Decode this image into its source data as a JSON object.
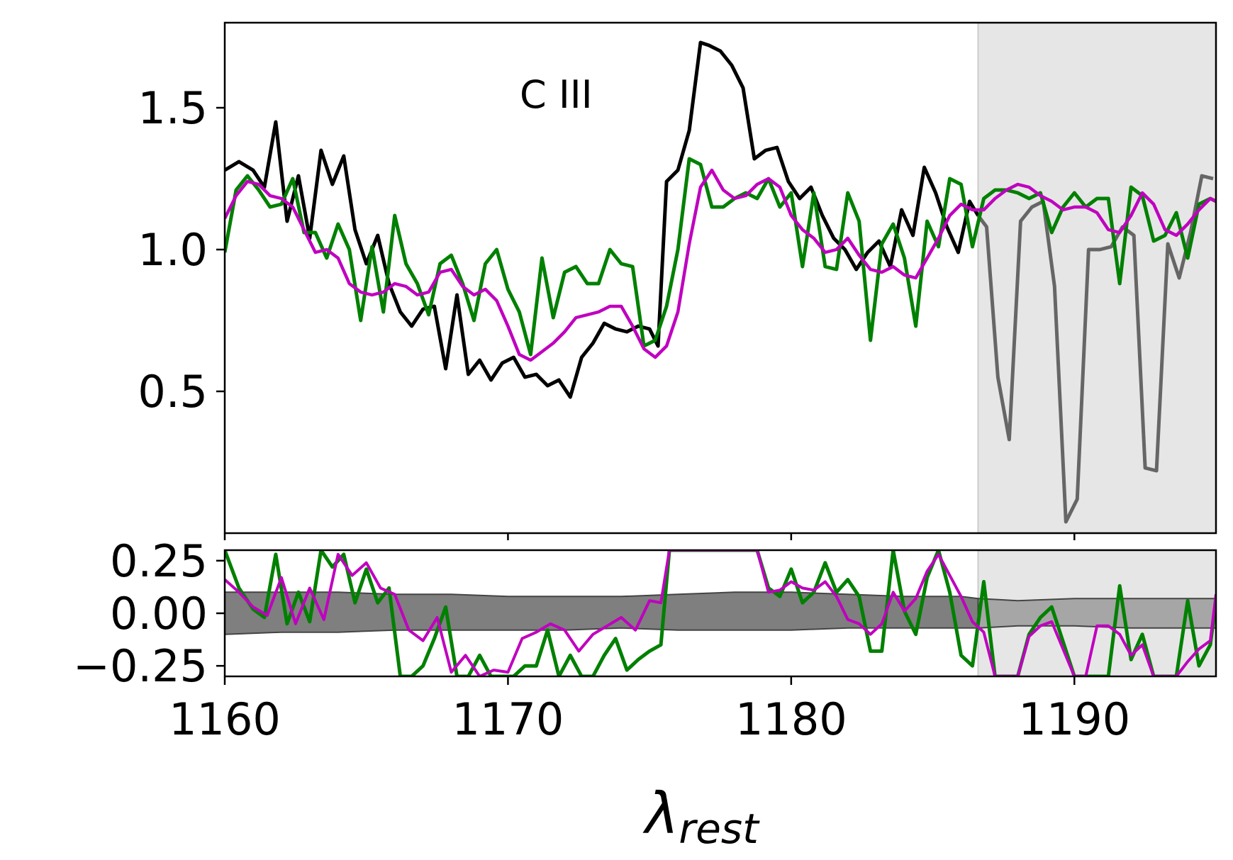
{
  "chart_data": {
    "type": "line",
    "xlabel_main": "λ",
    "xlabel_sub": "rest",
    "xlim": [
      1160,
      1195
    ],
    "x_ticks": [
      1160,
      1170,
      1180,
      1190
    ],
    "x_tick_labels": [
      "1160",
      "1170",
      "1180",
      "1190"
    ],
    "masked_region": [
      1186.6,
      1195
    ],
    "colors": {
      "black": "#000000",
      "green": "#008000",
      "magenta": "#bf00bf",
      "gray_line": "#666666",
      "mask_fill": "#e6e6e6",
      "band_dark": "#7f7f7f",
      "band_light": "#a6a6a6"
    },
    "top_panel": {
      "ylim": [
        0,
        1.8
      ],
      "y_ticks": [
        0.5,
        1.0,
        1.5
      ],
      "y_tick_labels": [
        "0.5",
        "1.0",
        "1.5"
      ],
      "annotation": {
        "text": "C III",
        "x": 1171.7,
        "y": 1.55
      },
      "black": {
        "x": [
          1160.0,
          1160.5,
          1161.0,
          1161.4,
          1161.8,
          1162.2,
          1162.6,
          1163.0,
          1163.4,
          1163.8,
          1164.2,
          1164.6,
          1165.0,
          1165.4,
          1165.8,
          1166.2,
          1166.6,
          1167.0,
          1167.4,
          1167.8,
          1168.2,
          1168.6,
          1169.0,
          1169.4,
          1169.8,
          1170.2,
          1170.6,
          1171.0,
          1171.4,
          1171.8,
          1172.2,
          1172.6,
          1173.0,
          1173.4,
          1173.8,
          1174.2,
          1174.6,
          1175.0,
          1175.3,
          1175.6,
          1176.0,
          1176.4,
          1176.8,
          1177.1,
          1177.5,
          1177.9,
          1178.3,
          1178.7,
          1179.1,
          1179.5,
          1179.9,
          1180.3,
          1180.7,
          1181.1,
          1181.5,
          1181.9,
          1182.3,
          1182.7,
          1183.1,
          1183.5,
          1183.9,
          1184.3,
          1184.7,
          1185.1,
          1185.5,
          1185.9,
          1186.3,
          1186.6
        ],
        "y": [
          1.28,
          1.31,
          1.28,
          1.22,
          1.45,
          1.1,
          1.26,
          1.04,
          1.35,
          1.23,
          1.33,
          1.07,
          0.95,
          1.05,
          0.88,
          0.78,
          0.73,
          0.79,
          0.8,
          0.58,
          0.84,
          0.56,
          0.61,
          0.54,
          0.6,
          0.62,
          0.55,
          0.56,
          0.52,
          0.54,
          0.48,
          0.62,
          0.67,
          0.74,
          0.72,
          0.71,
          0.73,
          0.72,
          0.66,
          1.24,
          1.28,
          1.42,
          1.73,
          1.72,
          1.7,
          1.65,
          1.57,
          1.32,
          1.35,
          1.36,
          1.24,
          1.18,
          1.22,
          1.12,
          1.04,
          1.0,
          0.93,
          0.99,
          1.03,
          0.94,
          1.14,
          1.05,
          1.29,
          1.2,
          1.08,
          0.99,
          1.17,
          1.12
        ]
      },
      "gray": {
        "x": [
          1186.6,
          1186.9,
          1187.3,
          1187.7,
          1188.1,
          1188.5,
          1188.9,
          1189.3,
          1189.7,
          1190.1,
          1190.5,
          1190.9,
          1191.3,
          1191.7,
          1192.1,
          1192.5,
          1192.9,
          1193.3,
          1193.7,
          1194.1,
          1194.5,
          1194.9
        ],
        "y": [
          1.12,
          1.08,
          0.55,
          0.33,
          1.1,
          1.15,
          1.17,
          0.87,
          0.04,
          0.12,
          1.0,
          1.0,
          1.01,
          1.08,
          1.05,
          0.23,
          0.22,
          1.02,
          0.9,
          1.06,
          1.26,
          1.25
        ]
      },
      "green": {
        "x": [
          1160.0,
          1160.4,
          1160.8,
          1161.2,
          1161.6,
          1162.0,
          1162.4,
          1162.8,
          1163.2,
          1163.6,
          1164.0,
          1164.4,
          1164.8,
          1165.2,
          1165.6,
          1166.0,
          1166.4,
          1166.8,
          1167.2,
          1167.6,
          1168.0,
          1168.4,
          1168.8,
          1169.2,
          1169.6,
          1170.0,
          1170.4,
          1170.8,
          1171.2,
          1171.6,
          1172.0,
          1172.4,
          1172.8,
          1173.2,
          1173.6,
          1174.0,
          1174.4,
          1174.8,
          1175.2,
          1175.6,
          1176.0,
          1176.4,
          1176.8,
          1177.2,
          1177.6,
          1178.0,
          1178.4,
          1178.8,
          1179.2,
          1179.6,
          1180.0,
          1180.4,
          1180.8,
          1181.2,
          1181.6,
          1182.0,
          1182.4,
          1182.8,
          1183.2,
          1183.6,
          1184.0,
          1184.4,
          1184.8,
          1185.2,
          1185.6,
          1186.0,
          1186.4,
          1186.8,
          1187.2,
          1187.6,
          1188.0,
          1188.4,
          1188.8,
          1189.2,
          1189.6,
          1190.0,
          1190.4,
          1190.8,
          1191.2,
          1191.6,
          1192.0,
          1192.4,
          1192.8,
          1193.2,
          1193.6,
          1194.0,
          1194.4,
          1194.8,
          1195.0
        ],
        "y": [
          0.99,
          1.21,
          1.26,
          1.21,
          1.15,
          1.16,
          1.25,
          1.06,
          1.06,
          0.97,
          1.09,
          1.0,
          0.75,
          1.01,
          0.78,
          1.12,
          0.95,
          0.88,
          0.77,
          0.95,
          0.98,
          0.88,
          0.75,
          0.95,
          1.0,
          0.86,
          0.78,
          0.63,
          0.97,
          0.76,
          0.92,
          0.94,
          0.88,
          0.88,
          1.0,
          0.95,
          0.94,
          0.66,
          0.68,
          0.8,
          1.0,
          1.32,
          1.3,
          1.15,
          1.15,
          1.18,
          1.2,
          1.18,
          1.25,
          1.15,
          1.2,
          0.94,
          1.2,
          0.94,
          0.93,
          1.2,
          1.1,
          0.68,
          1.02,
          1.09,
          0.97,
          0.73,
          1.1,
          1.01,
          1.25,
          1.23,
          1.01,
          1.18,
          1.21,
          1.21,
          1.2,
          1.18,
          1.2,
          1.06,
          1.15,
          1.2,
          1.15,
          1.18,
          1.18,
          0.88,
          1.22,
          1.19,
          1.03,
          1.05,
          1.13,
          0.97,
          1.16,
          1.18,
          1.17
        ]
      },
      "magenta": {
        "x": [
          1160.0,
          1160.4,
          1160.8,
          1161.2,
          1161.6,
          1162.0,
          1162.4,
          1162.8,
          1163.2,
          1163.6,
          1164.0,
          1164.4,
          1164.8,
          1165.2,
          1165.6,
          1166.0,
          1166.4,
          1166.8,
          1167.2,
          1167.6,
          1168.0,
          1168.4,
          1168.8,
          1169.2,
          1169.6,
          1170.0,
          1170.4,
          1170.8,
          1171.2,
          1171.6,
          1172.0,
          1172.4,
          1172.8,
          1173.2,
          1173.6,
          1174.0,
          1174.4,
          1174.8,
          1175.2,
          1175.6,
          1176.0,
          1176.4,
          1176.8,
          1177.2,
          1177.6,
          1178.0,
          1178.4,
          1178.8,
          1179.2,
          1179.6,
          1180.0,
          1180.4,
          1180.8,
          1181.2,
          1181.6,
          1182.0,
          1182.4,
          1182.8,
          1183.2,
          1183.6,
          1184.0,
          1184.4,
          1184.8,
          1185.2,
          1185.6,
          1186.0,
          1186.4,
          1186.8,
          1187.2,
          1187.6,
          1188.0,
          1188.4,
          1188.8,
          1189.2,
          1189.6,
          1190.0,
          1190.4,
          1190.8,
          1191.2,
          1191.6,
          1192.0,
          1192.4,
          1192.8,
          1193.2,
          1193.6,
          1194.0,
          1194.4,
          1194.8,
          1195.0
        ],
        "y": [
          1.11,
          1.19,
          1.24,
          1.23,
          1.19,
          1.18,
          1.15,
          1.07,
          0.99,
          1.0,
          0.97,
          0.88,
          0.85,
          0.84,
          0.85,
          0.88,
          0.87,
          0.84,
          0.85,
          0.92,
          0.93,
          0.87,
          0.84,
          0.86,
          0.82,
          0.73,
          0.63,
          0.61,
          0.64,
          0.67,
          0.71,
          0.76,
          0.77,
          0.78,
          0.8,
          0.8,
          0.73,
          0.65,
          0.62,
          0.66,
          0.78,
          1.02,
          1.22,
          1.28,
          1.21,
          1.18,
          1.19,
          1.23,
          1.25,
          1.22,
          1.12,
          1.07,
          1.04,
          0.99,
          1.0,
          1.04,
          0.98,
          0.93,
          0.92,
          0.94,
          0.91,
          0.9,
          0.97,
          1.04,
          1.12,
          1.16,
          1.14,
          1.14,
          1.18,
          1.21,
          1.23,
          1.22,
          1.19,
          1.17,
          1.14,
          1.15,
          1.15,
          1.13,
          1.07,
          1.06,
          1.12,
          1.2,
          1.16,
          1.07,
          1.05,
          1.09,
          1.14,
          1.18,
          1.17
        ]
      }
    },
    "bottom_panel": {
      "ylim": [
        -0.3,
        0.3
      ],
      "y_ticks": [
        0.25,
        0.0,
        -0.25
      ],
      "y_tick_labels": [
        "0.25",
        "0.00",
        "−0.25"
      ],
      "band": {
        "x": [
          1160,
          1162,
          1164,
          1166,
          1168,
          1170,
          1172,
          1174,
          1176,
          1178,
          1180,
          1182,
          1184,
          1186,
          1186.6,
          1188,
          1190,
          1192,
          1194,
          1195
        ],
        "upper": [
          0.1,
          0.1,
          0.1,
          0.09,
          0.09,
          0.08,
          0.08,
          0.08,
          0.09,
          0.1,
          0.1,
          0.09,
          0.08,
          0.08,
          0.07,
          0.06,
          0.07,
          0.07,
          0.07,
          0.07
        ],
        "lower": [
          -0.1,
          -0.09,
          -0.09,
          -0.08,
          -0.08,
          -0.08,
          -0.08,
          -0.07,
          -0.08,
          -0.08,
          -0.08,
          -0.07,
          -0.07,
          -0.07,
          -0.07,
          -0.06,
          -0.06,
          -0.07,
          -0.07,
          -0.07
        ]
      },
      "green": {
        "x": [
          1160.0,
          1160.5,
          1161.0,
          1161.4,
          1161.8,
          1162.2,
          1162.6,
          1163.0,
          1163.4,
          1163.8,
          1164.2,
          1164.6,
          1165.0,
          1165.4,
          1165.8,
          1166.2,
          1166.6,
          1167.0,
          1167.4,
          1167.8,
          1168.2,
          1168.6,
          1169.0,
          1169.4,
          1169.8,
          1170.2,
          1170.6,
          1171.0,
          1171.4,
          1171.8,
          1172.2,
          1172.6,
          1173.0,
          1173.4,
          1173.8,
          1174.2,
          1174.6,
          1175.0,
          1175.4,
          1175.7,
          1178.8,
          1179.2,
          1179.6,
          1180.0,
          1180.4,
          1180.8,
          1181.2,
          1181.6,
          1182.0,
          1182.4,
          1182.8,
          1183.2,
          1183.6,
          1184.0,
          1184.4,
          1184.8,
          1185.2,
          1185.6,
          1186.0,
          1186.4,
          1186.8,
          1187.2,
          1188.0,
          1188.4,
          1188.8,
          1189.2,
          1190.0,
          1190.4,
          1190.8,
          1191.2,
          1191.6,
          1192.0,
          1192.4,
          1192.8,
          1193.2,
          1193.6,
          1194.0,
          1194.4,
          1194.8,
          1195.0
        ],
        "y": [
          0.3,
          0.12,
          0.02,
          -0.02,
          0.28,
          -0.05,
          0.1,
          -0.04,
          0.3,
          0.22,
          0.28,
          0.05,
          0.21,
          0.05,
          0.12,
          -0.3,
          -0.3,
          -0.25,
          -0.12,
          0.03,
          -0.3,
          -0.3,
          -0.2,
          -0.3,
          -0.3,
          -0.3,
          -0.25,
          -0.25,
          -0.08,
          -0.3,
          -0.2,
          -0.3,
          -0.3,
          -0.2,
          -0.12,
          -0.27,
          -0.22,
          -0.18,
          -0.15,
          0.3,
          0.3,
          0.12,
          0.08,
          0.21,
          0.05,
          0.1,
          0.24,
          0.1,
          0.16,
          0.08,
          -0.18,
          -0.18,
          0.3,
          0.01,
          -0.1,
          0.17,
          0.3,
          0.1,
          -0.2,
          -0.25,
          0.15,
          -0.3,
          -0.3,
          -0.1,
          -0.02,
          0.03,
          -0.3,
          -0.3,
          -0.3,
          -0.3,
          0.13,
          -0.22,
          -0.1,
          -0.3,
          -0.3,
          -0.3,
          0.06,
          -0.25,
          -0.15,
          0.06
        ]
      },
      "magenta": {
        "x": [
          1160.0,
          1160.5,
          1161.0,
          1161.5,
          1162.0,
          1162.5,
          1163.0,
          1163.5,
          1164.0,
          1164.5,
          1165.0,
          1165.5,
          1166.0,
          1166.5,
          1167.0,
          1167.5,
          1168.0,
          1168.5,
          1169.0,
          1169.5,
          1170.0,
          1170.5,
          1171.0,
          1171.5,
          1172.0,
          1172.5,
          1173.0,
          1173.5,
          1174.0,
          1174.5,
          1175.0,
          1175.4,
          1175.7,
          1178.8,
          1179.2,
          1179.6,
          1180.0,
          1180.4,
          1180.8,
          1181.2,
          1181.6,
          1182.0,
          1182.4,
          1182.8,
          1183.2,
          1183.6,
          1184.0,
          1184.4,
          1184.8,
          1185.2,
          1185.6,
          1186.0,
          1186.4,
          1186.8,
          1187.2,
          1188.0,
          1188.4,
          1188.8,
          1189.2,
          1190.0,
          1190.4,
          1190.8,
          1191.2,
          1191.6,
          1192.0,
          1192.4,
          1192.8,
          1193.2,
          1193.6,
          1194.0,
          1194.4,
          1194.8,
          1195.0
        ],
        "y": [
          0.16,
          0.1,
          0.03,
          -0.01,
          0.17,
          -0.05,
          0.12,
          -0.03,
          0.28,
          0.18,
          0.24,
          0.12,
          0.09,
          -0.08,
          -0.13,
          -0.02,
          -0.28,
          -0.2,
          -0.3,
          -0.27,
          -0.28,
          -0.12,
          -0.09,
          -0.05,
          -0.08,
          -0.18,
          -0.1,
          -0.06,
          -0.02,
          -0.08,
          0.06,
          0.05,
          0.3,
          0.3,
          0.1,
          0.11,
          0.15,
          0.12,
          0.11,
          0.15,
          0.08,
          -0.03,
          -0.05,
          -0.1,
          -0.05,
          0.1,
          0.01,
          0.07,
          0.2,
          0.28,
          0.18,
          0.08,
          -0.04,
          -0.09,
          -0.3,
          -0.3,
          -0.11,
          -0.06,
          -0.04,
          -0.3,
          -0.3,
          -0.06,
          -0.06,
          -0.1,
          -0.2,
          -0.15,
          -0.3,
          -0.3,
          -0.3,
          -0.23,
          -0.17,
          -0.13,
          0.09
        ]
      }
    }
  }
}
